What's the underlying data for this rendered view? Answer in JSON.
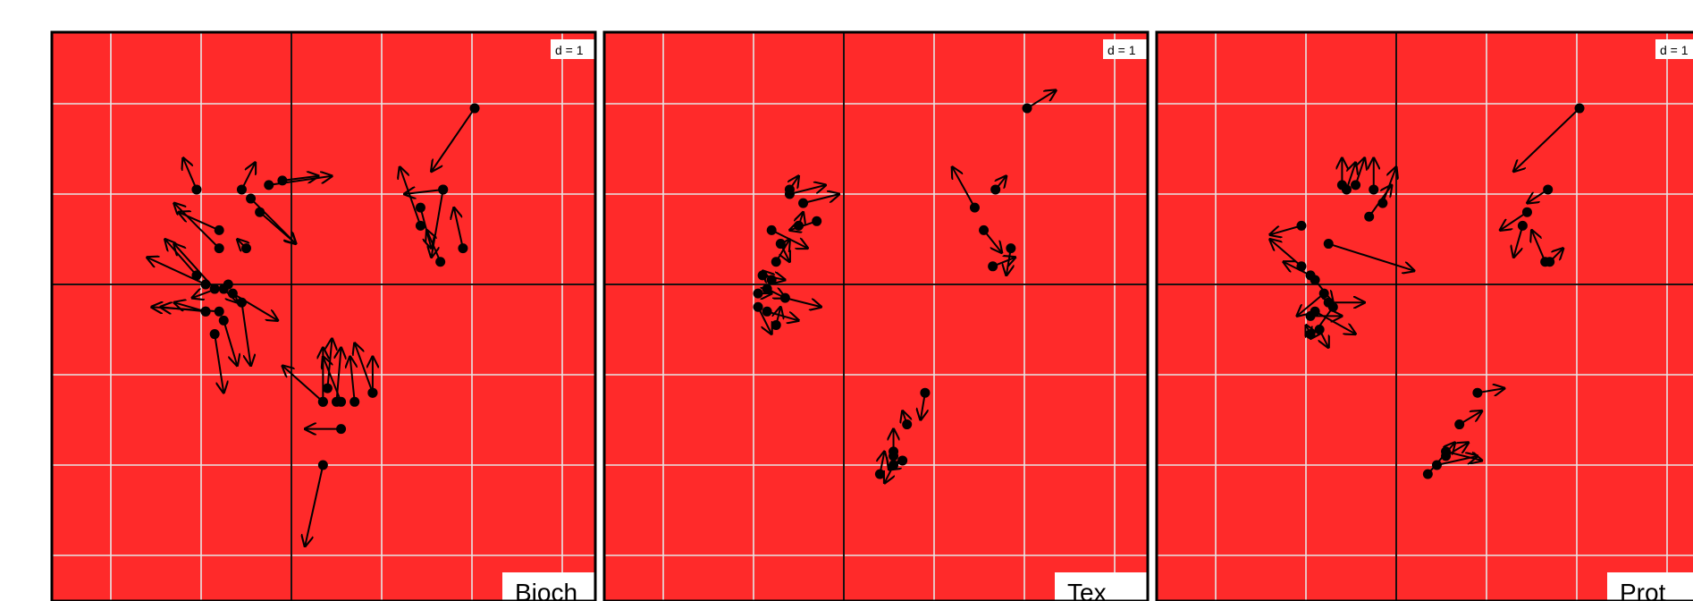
{
  "chart_data": {
    "type": "scatter",
    "description_kind": "arrow-plot",
    "background_color": "#ff2a2a",
    "grid": true,
    "grid_color": "#e6e6e6",
    "axis_line_color": "#000000",
    "arrow_color": "#000000",
    "point_color": "#000000",
    "xlim": [
      -2.65,
      3.4
    ],
    "ylim": [
      -3.5,
      2.8
    ],
    "grid_step": 1,
    "panels": [
      {
        "label": "Bioch",
        "scale_label": "d = 1",
        "arrows": [
          [
            2.03,
            1.95,
            1.55,
            1.25
          ],
          [
            1.68,
            1.05,
            1.25,
            1.0
          ],
          [
            1.68,
            1.05,
            1.55,
            0.3
          ],
          [
            1.43,
            0.85,
            1.55,
            0.4
          ],
          [
            1.43,
            0.65,
            1.2,
            1.3
          ],
          [
            1.9,
            0.4,
            1.8,
            0.85
          ],
          [
            1.65,
            0.25,
            1.5,
            0.6
          ],
          [
            -1.05,
            1.05,
            -1.2,
            1.4
          ],
          [
            -0.55,
            1.05,
            -0.4,
            1.35
          ],
          [
            -0.25,
            1.1,
            0.45,
            1.2
          ],
          [
            -0.1,
            1.15,
            0.3,
            1.2
          ],
          [
            -0.45,
            0.95,
            0.05,
            0.45
          ],
          [
            -0.35,
            0.8,
            0.05,
            0.45
          ],
          [
            -0.8,
            0.6,
            -1.25,
            0.8
          ],
          [
            -0.8,
            0.4,
            -1.3,
            0.9
          ],
          [
            -0.5,
            0.4,
            -0.6,
            0.5
          ],
          [
            -1.05,
            0.1,
            -1.4,
            0.5
          ],
          [
            -0.95,
            0.0,
            -1.6,
            0.3
          ],
          [
            -0.85,
            -0.05,
            -1.3,
            0.45
          ],
          [
            -0.75,
            -0.05,
            -0.6,
            -0.2
          ],
          [
            -0.7,
            0.0,
            -1.1,
            -0.15
          ],
          [
            -0.65,
            -0.1,
            -0.15,
            -0.4
          ],
          [
            -0.55,
            -0.2,
            -0.45,
            -0.9
          ],
          [
            -0.8,
            -0.3,
            -1.55,
            -0.25
          ],
          [
            -0.95,
            -0.3,
            -1.3,
            -0.2
          ],
          [
            -0.85,
            -0.55,
            -0.75,
            -1.2
          ],
          [
            -0.95,
            -0.3,
            -1.45,
            -0.25
          ],
          [
            -0.75,
            -0.4,
            -0.6,
            -0.9
          ],
          [
            0.35,
            -1.3,
            -0.1,
            -0.9
          ],
          [
            0.35,
            -1.3,
            0.35,
            -0.7
          ],
          [
            0.55,
            -1.3,
            0.35,
            -0.8
          ],
          [
            0.5,
            -1.3,
            0.55,
            -0.7
          ],
          [
            0.4,
            -1.15,
            0.45,
            -0.6
          ],
          [
            0.9,
            -1.2,
            0.7,
            -0.65
          ],
          [
            0.9,
            -1.2,
            0.9,
            -0.8
          ],
          [
            0.7,
            -1.3,
            0.65,
            -0.8
          ],
          [
            0.55,
            -1.6,
            0.15,
            -1.6
          ],
          [
            0.35,
            -2.0,
            0.15,
            -2.9
          ]
        ]
      },
      {
        "label": "Tex",
        "scale_label": "d = 1",
        "arrows": [
          [
            2.03,
            1.95,
            2.35,
            2.15
          ],
          [
            1.68,
            1.05,
            1.8,
            1.2
          ],
          [
            1.45,
            0.85,
            1.2,
            1.3
          ],
          [
            1.55,
            0.6,
            1.75,
            0.35
          ],
          [
            1.85,
            0.4,
            1.8,
            0.1
          ],
          [
            1.65,
            0.2,
            1.9,
            0.3
          ],
          [
            -0.6,
            1.05,
            -0.5,
            1.2
          ],
          [
            -0.6,
            1.0,
            -0.2,
            1.1
          ],
          [
            -0.45,
            0.9,
            -0.05,
            1.0
          ],
          [
            -0.3,
            0.7,
            -0.6,
            0.6
          ],
          [
            -0.5,
            0.65,
            -0.45,
            0.8
          ],
          [
            -0.8,
            0.6,
            -0.4,
            0.4
          ],
          [
            -0.7,
            0.45,
            -0.6,
            0.25
          ],
          [
            -0.75,
            0.25,
            -0.6,
            0.5
          ],
          [
            -0.9,
            0.1,
            -0.65,
            0.05
          ],
          [
            -0.8,
            0.05,
            -0.9,
            0.15
          ],
          [
            -0.85,
            -0.05,
            -0.65,
            -0.15
          ],
          [
            -0.65,
            -0.15,
            -0.25,
            -0.25
          ],
          [
            -0.95,
            -0.1,
            -0.8,
            -0.1
          ],
          [
            -0.85,
            -0.3,
            -0.5,
            -0.4
          ],
          [
            -0.75,
            -0.45,
            -0.7,
            -0.25
          ],
          [
            -0.95,
            -0.25,
            -0.8,
            -0.55
          ],
          [
            0.9,
            -1.2,
            0.85,
            -1.5
          ],
          [
            0.7,
            -1.55,
            0.65,
            -1.4
          ],
          [
            0.55,
            -1.85,
            0.55,
            -1.6
          ],
          [
            0.55,
            -1.9,
            0.5,
            -2.05
          ],
          [
            0.65,
            -1.95,
            0.5,
            -2.05
          ],
          [
            0.4,
            -2.1,
            0.45,
            -1.85
          ],
          [
            0.55,
            -2.0,
            0.45,
            -2.2
          ]
        ]
      },
      {
        "label": "Prot",
        "scale_label": "d = 1",
        "arrows": [
          [
            2.03,
            1.95,
            1.3,
            1.25
          ],
          [
            1.68,
            1.05,
            1.45,
            0.9
          ],
          [
            1.45,
            0.8,
            1.15,
            0.6
          ],
          [
            1.4,
            0.65,
            1.3,
            0.3
          ],
          [
            1.65,
            0.25,
            1.5,
            0.6
          ],
          [
            1.7,
            0.25,
            1.85,
            0.4
          ],
          [
            -0.55,
            1.05,
            -0.45,
            1.35
          ],
          [
            -0.6,
            1.1,
            -0.6,
            1.4
          ],
          [
            -0.45,
            1.1,
            -0.35,
            1.4
          ],
          [
            -0.25,
            1.05,
            -0.25,
            1.4
          ],
          [
            -0.3,
            0.75,
            -0.05,
            1.1
          ],
          [
            -0.15,
            0.9,
            0.0,
            1.3
          ],
          [
            -1.05,
            0.65,
            -1.4,
            0.55
          ],
          [
            -0.75,
            0.45,
            0.2,
            0.15
          ],
          [
            -1.05,
            0.2,
            -1.4,
            0.5
          ],
          [
            -0.95,
            0.1,
            -1.25,
            0.25
          ],
          [
            -0.9,
            0.05,
            -0.7,
            -0.2
          ],
          [
            -0.8,
            -0.1,
            -1.1,
            -0.35
          ],
          [
            -0.75,
            -0.2,
            -0.35,
            -0.2
          ],
          [
            -0.9,
            -0.3,
            -0.45,
            -0.55
          ],
          [
            -0.7,
            -0.25,
            -0.95,
            -0.6
          ],
          [
            -0.85,
            -0.5,
            -0.75,
            -0.7
          ],
          [
            -0.95,
            -0.35,
            -0.6,
            -0.35
          ],
          [
            -0.95,
            -0.55,
            -1.0,
            -0.45
          ],
          [
            0.9,
            -1.2,
            1.2,
            -1.15
          ],
          [
            0.7,
            -1.55,
            0.95,
            -1.4
          ],
          [
            0.55,
            -1.85,
            0.95,
            -1.95
          ],
          [
            0.55,
            -1.9,
            0.8,
            -1.75
          ],
          [
            0.45,
            -2.0,
            0.9,
            -1.9
          ],
          [
            0.35,
            -2.1,
            0.65,
            -1.75
          ]
        ]
      }
    ]
  }
}
